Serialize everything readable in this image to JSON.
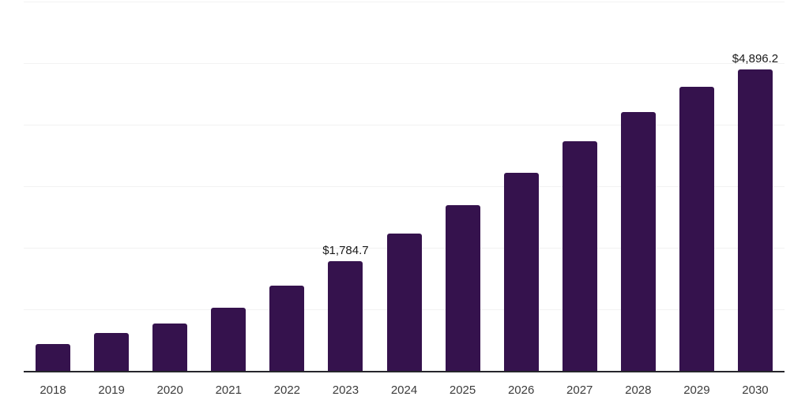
{
  "chart": {
    "background_color": "#ffffff",
    "bar_color": "#35124d",
    "grid_color": "#f2f2f2",
    "axis_line_color": "#26262b",
    "tick_label_color": "#3c3c3c",
    "data_label_color": "#1a1a1a"
  },
  "chart_data": {
    "type": "bar",
    "title": "",
    "xlabel": "",
    "ylabel": "",
    "categories": [
      "2018",
      "2019",
      "2020",
      "2021",
      "2022",
      "2023",
      "2024",
      "2025",
      "2026",
      "2027",
      "2028",
      "2029",
      "2030"
    ],
    "values": [
      435,
      612,
      770,
      1030,
      1386,
      1784.7,
      2230,
      2695,
      3215,
      3730,
      4205,
      4615,
      4896.2
    ],
    "point_labels": [
      "",
      "",
      "",
      "",
      "",
      "$1,784.7",
      "",
      "",
      "",
      "",
      "",
      "",
      "$4,896.2"
    ],
    "ylim": [
      0,
      6000
    ],
    "gridline_step": 1000,
    "grid": true,
    "legend_position": "none",
    "y_axis_labels_visible": false,
    "x_axis_labels_visible": true
  }
}
